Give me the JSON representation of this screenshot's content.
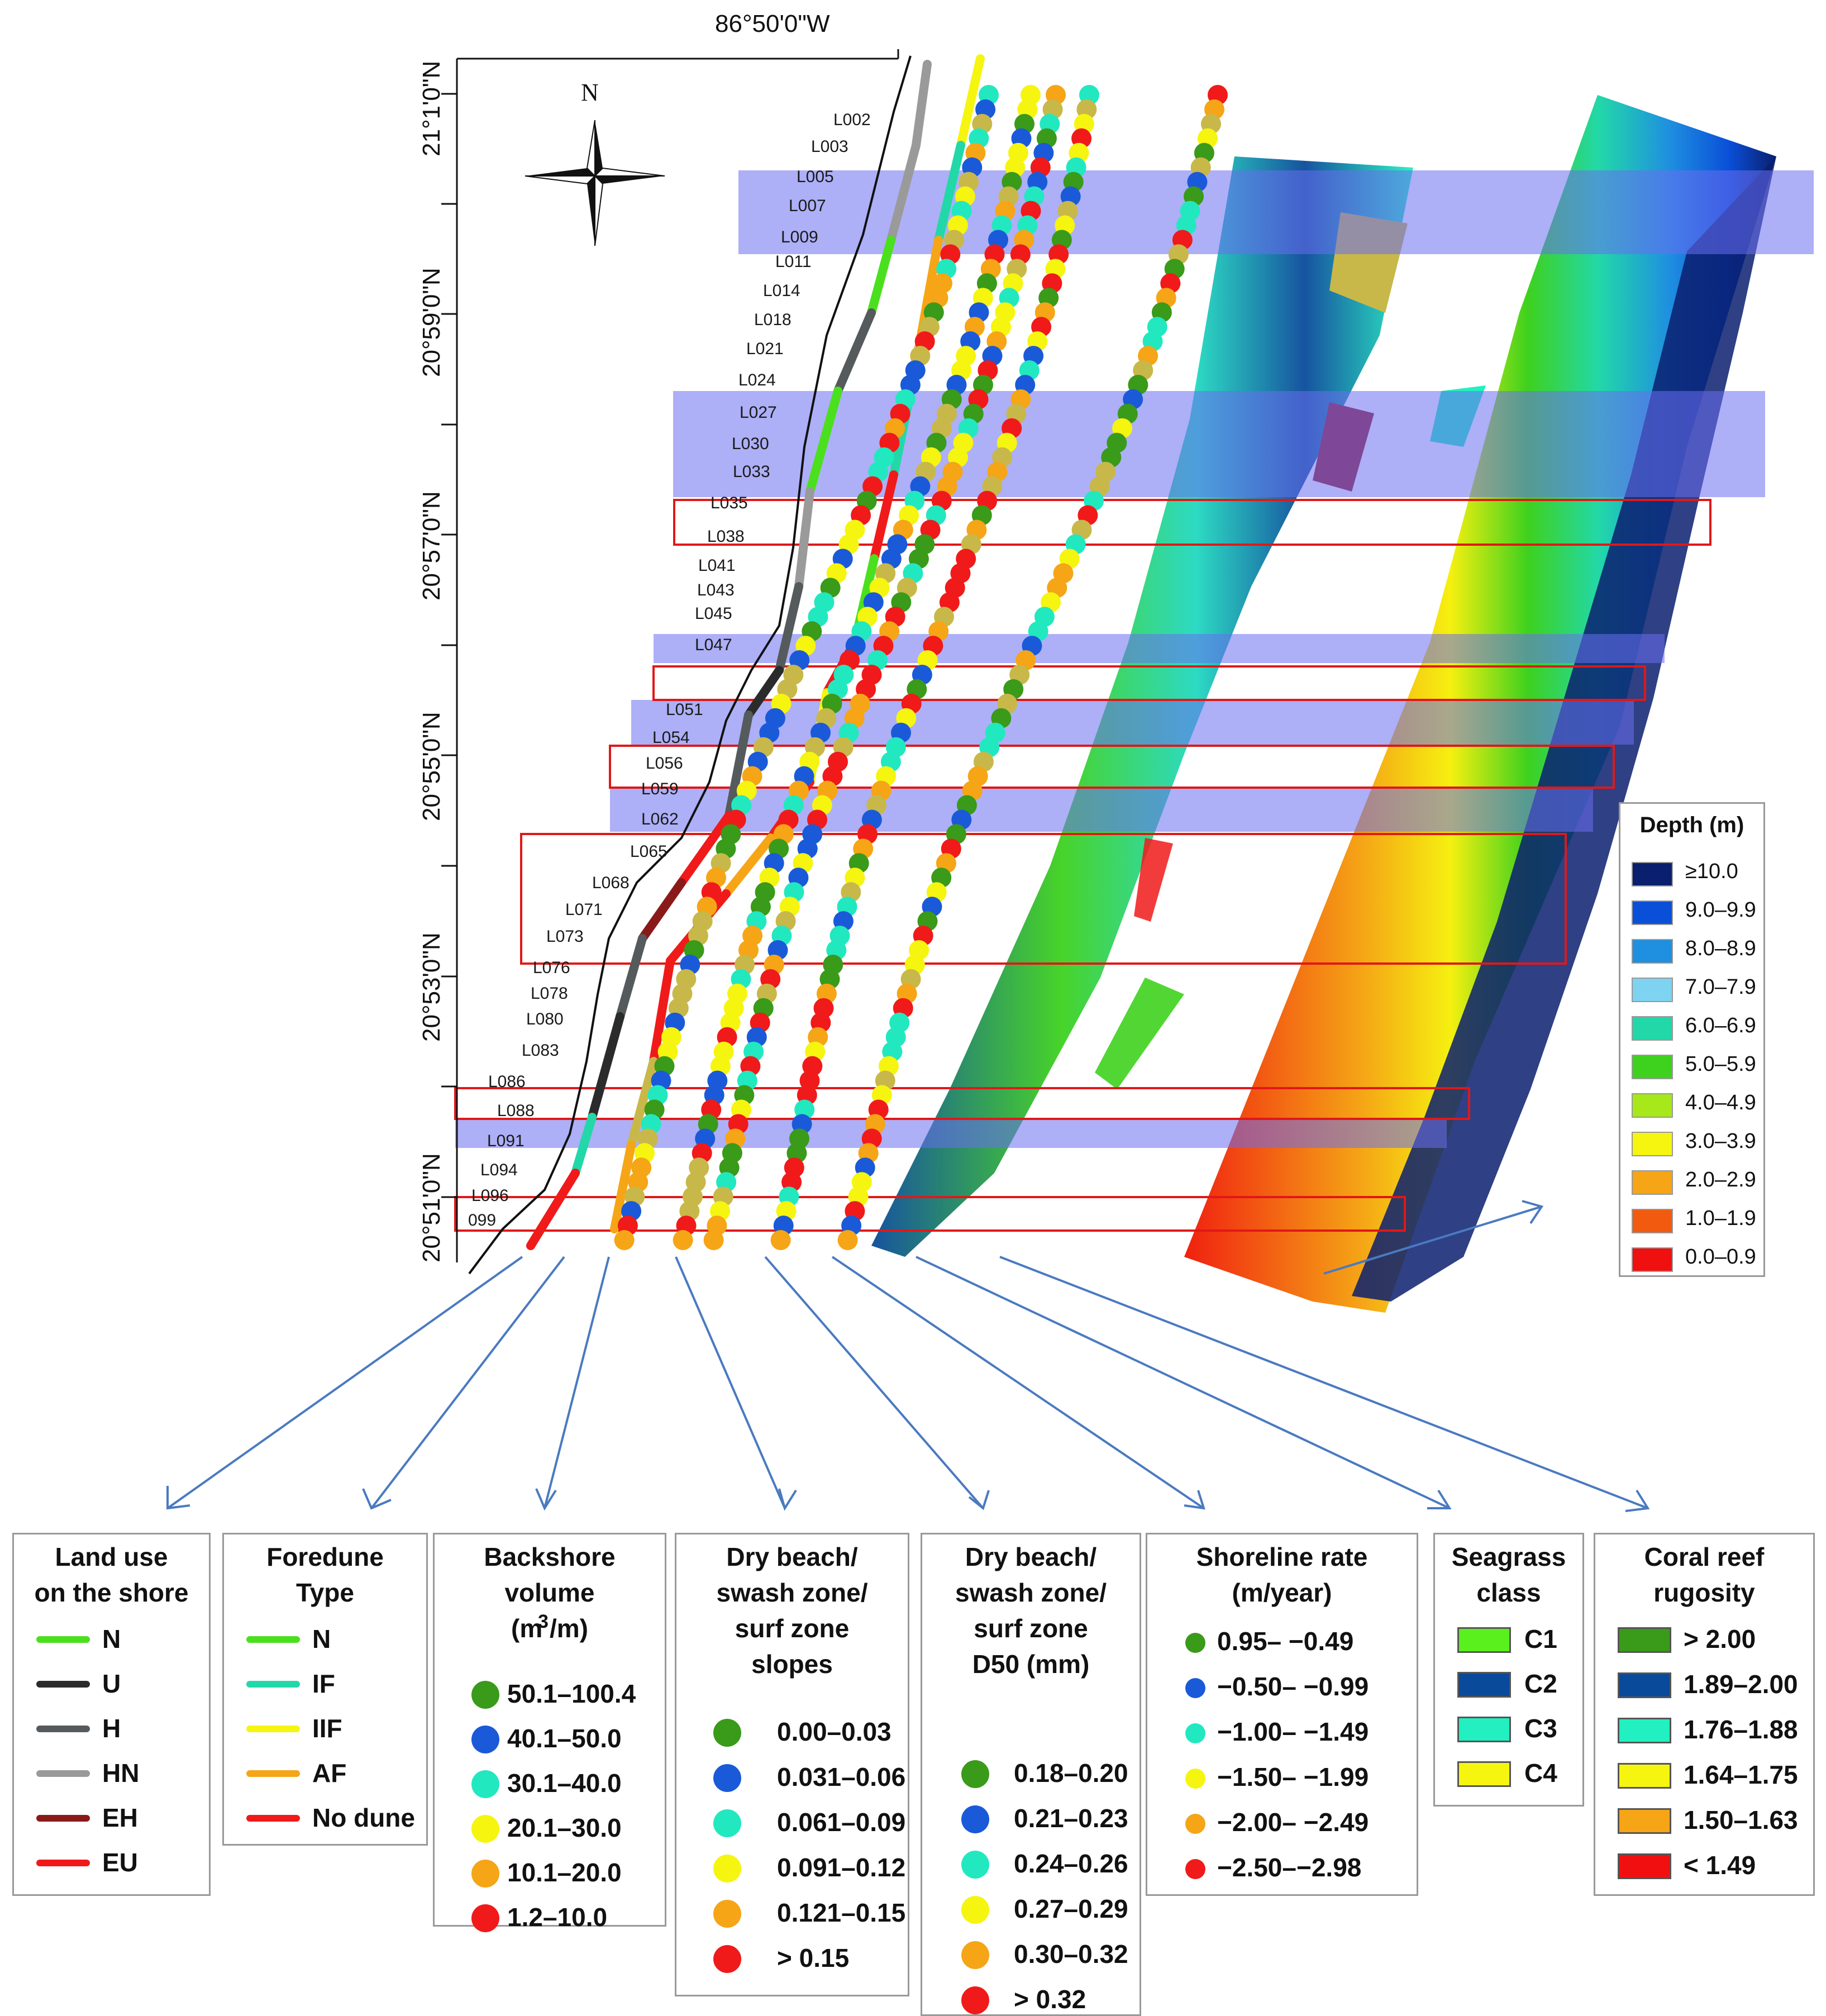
{
  "map": {
    "longitude_label": "86°50'0\"W",
    "latitude_labels": [
      "21°1'0\"N",
      "20°59'0\"N",
      "20°57'0\"N",
      "20°55'0\"N",
      "20°53'0\"N",
      "20°51'0\"N"
    ],
    "north_label": "N",
    "profiles": [
      "L002",
      "L003",
      "L005",
      "L007",
      "L009",
      "L011",
      "L014",
      "L018",
      "L021",
      "L024",
      "L027",
      "L030",
      "L033",
      "L035",
      "L038",
      "L041",
      "L043",
      "L045",
      "L047",
      "L051",
      "L054",
      "L056",
      "L059",
      "L062",
      "L065",
      "L068",
      "L071",
      "L073",
      "L076",
      "L078",
      "L080",
      "L083",
      "L086",
      "L088",
      "L091",
      "L094",
      "L096",
      "099"
    ]
  },
  "depth_legend": {
    "title": "Depth (m)",
    "items": [
      {
        "label": "≥10.0",
        "color": "#0a1f6e"
      },
      {
        "label": "9.0–9.9",
        "color": "#0a4fd8"
      },
      {
        "label": "8.0–8.9",
        "color": "#1f8fe0"
      },
      {
        "label": "7.0–7.9",
        "color": "#7ed3f0"
      },
      {
        "label": "6.0–6.9",
        "color": "#22d8a8"
      },
      {
        "label": "5.0–5.9",
        "color": "#3ed11e"
      },
      {
        "label": "4.0–4.9",
        "color": "#a6e81a"
      },
      {
        "label": "3.0–3.9",
        "color": "#f5f510"
      },
      {
        "label": "2.0–2.9",
        "color": "#f5a516"
      },
      {
        "label": "1.0–1.9",
        "color": "#f25a10"
      },
      {
        "label": "0.0–0.9",
        "color": "#f01010"
      }
    ]
  },
  "legends": {
    "land_use": {
      "title_1": "Land use",
      "title_2": "on the shore",
      "items": [
        {
          "label": "N",
          "color": "#4be01e"
        },
        {
          "label": "U",
          "color": "#2b2b2b"
        },
        {
          "label": "H",
          "color": "#555a5c"
        },
        {
          "label": "HN",
          "color": "#9a9a9a"
        },
        {
          "label": "EH",
          "color": "#8a1a1a"
        },
        {
          "label": "EU",
          "color": "#f01a1a"
        }
      ]
    },
    "foredune": {
      "title_1": "Foredune",
      "title_2": "Type",
      "items": [
        {
          "label": "N",
          "color": "#4be01e"
        },
        {
          "label": "IF",
          "color": "#22d8a8"
        },
        {
          "label": "IIF",
          "color": "#f5f510"
        },
        {
          "label": "AF",
          "color": "#f5a516"
        },
        {
          "label": "No dune",
          "color": "#f01a1a"
        }
      ]
    },
    "backshore": {
      "title_1": "Backshore",
      "title_2": "volume",
      "title_3": "(m /m)",
      "superscript": "3",
      "items": [
        {
          "label": "50.1–100.4",
          "color": "#3a9a1a"
        },
        {
          "label": "40.1–50.0",
          "color": "#1a5ad8"
        },
        {
          "label": "30.1–40.0",
          "color": "#22e8c0"
        },
        {
          "label": "20.1–30.0",
          "color": "#f5f510"
        },
        {
          "label": "10.1–20.0",
          "color": "#f5a516"
        },
        {
          "label": "1.2–10.0",
          "color": "#f01a1a"
        }
      ]
    },
    "slopes": {
      "title_1": "Dry beach/",
      "title_2": "swash zone/",
      "title_3": "surf zone",
      "title_4": "slopes",
      "items": [
        {
          "label": "0.00–0.03",
          "color": "#3a9a1a"
        },
        {
          "label": "0.031–0.06",
          "color": "#1a5ad8"
        },
        {
          "label": "0.061–0.09",
          "color": "#22e8c0"
        },
        {
          "label": "0.091–0.12",
          "color": "#f5f510"
        },
        {
          "label": "0.121–0.15",
          "color": "#f5a516"
        },
        {
          "label": "> 0.15",
          "color": "#f01a1a"
        }
      ]
    },
    "d50": {
      "title_1": "Dry beach/",
      "title_2": "swash zone/",
      "title_3": "surf zone",
      "title_4": "D50 (mm)",
      "items": [
        {
          "label": "0.18–0.20",
          "color": "#3a9a1a"
        },
        {
          "label": "0.21–0.23",
          "color": "#1a5ad8"
        },
        {
          "label": "0.24–0.26",
          "color": "#22e8c0"
        },
        {
          "label": "0.27–0.29",
          "color": "#f5f510"
        },
        {
          "label": "0.30–0.32",
          "color": "#f5a516"
        },
        {
          "label": "> 0.32",
          "color": "#f01a1a"
        }
      ]
    },
    "shoreline": {
      "title_1": "Shoreline rate",
      "title_2": "(m/year)",
      "items": [
        {
          "label": "0.95– −0.49",
          "color": "#3a9a1a"
        },
        {
          "label": "−0.50– −0.99",
          "color": "#1a5ad8"
        },
        {
          "label": "−1.00– −1.49",
          "color": "#22e8c0"
        },
        {
          "label": "−1.50– −1.99",
          "color": "#f5f510"
        },
        {
          "label": "−2.00– −2.49",
          "color": "#f5a516"
        },
        {
          "label": "−2.50–−2.98",
          "color": "#f01a1a"
        }
      ]
    },
    "seagrass": {
      "title_1": "Seagrass",
      "title_2": "class",
      "items": [
        {
          "label": "C1",
          "color": "#5af01e"
        },
        {
          "label": "C2",
          "color": "#0a4a9a"
        },
        {
          "label": "C3",
          "color": "#22f0c0"
        },
        {
          "label": "C4",
          "color": "#f5f510"
        }
      ]
    },
    "coral": {
      "title_1": "Coral reef",
      "title_2": "rugosity",
      "items": [
        {
          "label": "> 2.00",
          "color": "#3a9a1a"
        },
        {
          "label": "1.89–2.00",
          "color": "#0a4a9a"
        },
        {
          "label": "1.76–1.88",
          "color": "#22f0c0"
        },
        {
          "label": "1.64–1.75",
          "color": "#f5f510"
        },
        {
          "label": "1.50–1.63",
          "color": "#f5a516"
        },
        {
          "label": "< 1.49",
          "color": "#f01010"
        }
      ]
    }
  }
}
